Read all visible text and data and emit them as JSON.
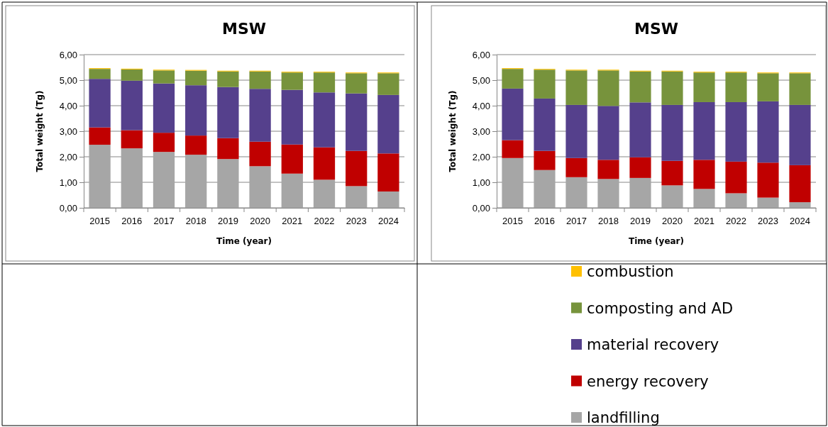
{
  "chart_data": [
    {
      "type": "bar",
      "title": "MSW",
      "xlabel": "Time (year)",
      "ylabel": "Total weight (Tg)",
      "stacked": true,
      "grid": "y",
      "legend": false,
      "categories": [
        "2015",
        "2016",
        "2017",
        "2018",
        "2019",
        "2020",
        "2021",
        "2022",
        "2023",
        "2024"
      ],
      "ylim": [
        0,
        6
      ],
      "yticks": [
        {
          "value": 0,
          "label": "0,00"
        },
        {
          "value": 1,
          "label": "1,00"
        },
        {
          "value": 2,
          "label": "2,00"
        },
        {
          "value": 3,
          "label": "3,00"
        },
        {
          "value": 4,
          "label": "4,00"
        },
        {
          "value": 5,
          "label": "5,00"
        },
        {
          "value": 6,
          "label": "6,00"
        }
      ],
      "series": [
        {
          "color": "#a6a6a6",
          "values": [
            2.47,
            2.33,
            2.19,
            2.08,
            1.91,
            1.63,
            1.34,
            1.1,
            0.85,
            0.64
          ]
        },
        {
          "color": "#c00000",
          "values": [
            0.68,
            0.71,
            0.75,
            0.75,
            0.82,
            0.96,
            1.14,
            1.27,
            1.38,
            1.49
          ]
        },
        {
          "color": "#55408c",
          "values": [
            1.9,
            1.94,
            1.93,
            1.97,
            2.0,
            2.07,
            2.14,
            2.15,
            2.25,
            2.29
          ]
        },
        {
          "color": "#77933c",
          "values": [
            0.39,
            0.44,
            0.51,
            0.57,
            0.61,
            0.68,
            0.68,
            0.78,
            0.79,
            0.85
          ]
        },
        {
          "color": "#ffc000",
          "values": [
            0.03,
            0.03,
            0.03,
            0.03,
            0.03,
            0.03,
            0.03,
            0.03,
            0.03,
            0.03
          ]
        }
      ]
    },
    {
      "type": "bar",
      "title": "MSW",
      "xlabel": "Time (year)",
      "ylabel": "Total weight (Tg)",
      "stacked": true,
      "grid": "y",
      "legend": "bottom",
      "categories": [
        "2015",
        "2016",
        "2017",
        "2018",
        "2019",
        "2020",
        "2021",
        "2022",
        "2023",
        "2024"
      ],
      "ylim": [
        0,
        6
      ],
      "yticks": [
        {
          "value": 0,
          "label": "0,00"
        },
        {
          "value": 1,
          "label": "1,00"
        },
        {
          "value": 2,
          "label": "2,00"
        },
        {
          "value": 3,
          "label": "3,00"
        },
        {
          "value": 4,
          "label": "4,00"
        },
        {
          "value": 5,
          "label": "5,00"
        },
        {
          "value": 6,
          "label": "6,00"
        }
      ],
      "series": [
        {
          "name": "landfilling",
          "color": "#a6a6a6",
          "values": [
            1.95,
            1.48,
            1.2,
            1.13,
            1.17,
            0.88,
            0.74,
            0.57,
            0.4,
            0.22
          ]
        },
        {
          "name": "energy recovery",
          "color": "#c00000",
          "values": [
            0.7,
            0.75,
            0.75,
            0.75,
            0.81,
            0.96,
            1.14,
            1.24,
            1.37,
            1.45
          ]
        },
        {
          "name": "material recovery",
          "color": "#55408c",
          "values": [
            2.02,
            2.05,
            2.08,
            2.11,
            2.15,
            2.19,
            2.26,
            2.33,
            2.4,
            2.36
          ]
        },
        {
          "name": "composting and AD",
          "color": "#77933c",
          "values": [
            0.77,
            1.13,
            1.35,
            1.39,
            1.21,
            1.31,
            1.16,
            1.16,
            1.1,
            1.24
          ]
        },
        {
          "name": "combustion",
          "color": "#ffc000",
          "values": [
            0.03,
            0.03,
            0.03,
            0.03,
            0.03,
            0.03,
            0.03,
            0.03,
            0.03,
            0.03
          ]
        }
      ]
    }
  ]
}
